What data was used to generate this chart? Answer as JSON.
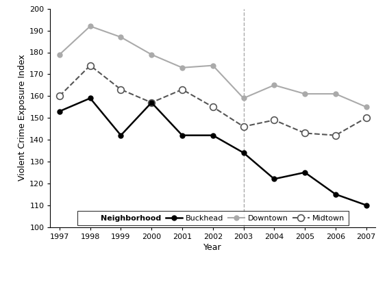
{
  "years": [
    1997,
    1998,
    1999,
    2000,
    2001,
    2002,
    2003,
    2004,
    2005,
    2006,
    2007
  ],
  "buckhead": [
    153,
    159,
    142,
    157,
    142,
    142,
    134,
    122,
    125,
    115,
    110
  ],
  "downtown": [
    179,
    192,
    187,
    179,
    173,
    174,
    159,
    165,
    161,
    161,
    155
  ],
  "midtown": [
    160,
    174,
    163,
    157,
    163,
    155,
    146,
    149,
    143,
    142,
    150
  ],
  "buckhead_color": "#000000",
  "downtown_color": "#aaaaaa",
  "midtown_color": "#555555",
  "vline_color": "#aaaaaa",
  "vline_x": 2003,
  "xlabel": "Year",
  "ylabel": "Violent Crime Exposure Index",
  "ylim": [
    100,
    200
  ],
  "xlim_min": 1996.7,
  "xlim_max": 2007.3,
  "yticks": [
    100,
    110,
    120,
    130,
    140,
    150,
    160,
    170,
    180,
    190,
    200
  ],
  "xticks": [
    1997,
    1998,
    1999,
    2000,
    2001,
    2002,
    2003,
    2004,
    2005,
    2006,
    2007
  ],
  "legend_neighborhood_label": "Neighborhood",
  "legend_buckhead_label": "Buckhead",
  "legend_downtown_label": "Downtown",
  "legend_midtown_label": "Midtown",
  "figwidth": 5.65,
  "figheight": 4.25,
  "dpi": 100
}
